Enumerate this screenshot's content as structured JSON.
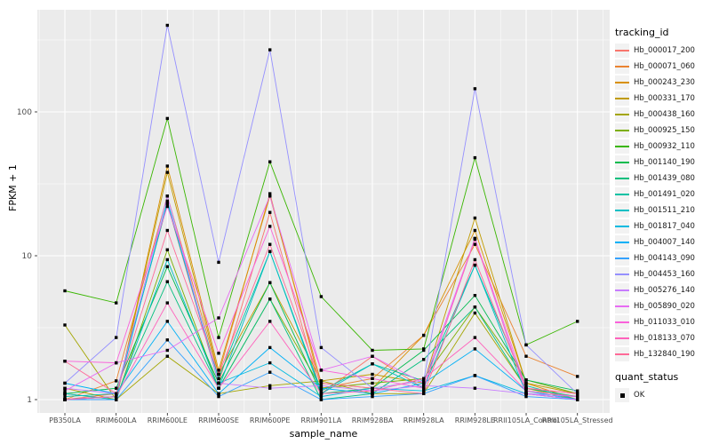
{
  "chart_data": {
    "type": "line",
    "xlabel": "sample_name",
    "ylabel": "FPKM + 1",
    "y_scale": "log10",
    "y_ticks": [
      1,
      10,
      100
    ],
    "y_minor_ticks": [
      3.162,
      31.62,
      316.2
    ],
    "ylim": [
      0.81,
      510
    ],
    "grid": true,
    "legend_position": "right",
    "legend_title": "tracking_id",
    "point_marker": "black-filled-square",
    "quant_status": {
      "title": "quant_status",
      "values": [
        "OK"
      ]
    },
    "panel_bg_color": "#EBEBEB",
    "grid_color": "#FFFFFF",
    "axis_text_color": "#4D4D4D",
    "categories": [
      "PB350LA",
      "RRIM600LA",
      "RRIM600LE",
      "RRIM600SE",
      "RRIM600PE",
      "RRIM901LA",
      "RRIM928BA",
      "RRIM928LA",
      "RRIM928LE",
      "RRII105LA_Control",
      "RRII105LA_Stressed"
    ],
    "series": [
      {
        "name": "Hb_000017_200",
        "color": "#F8766D",
        "values": [
          1.0,
          1.1,
          23,
          1.3,
          20,
          1.1,
          2.0,
          1.2,
          13.0,
          1.1,
          1.0
        ]
      },
      {
        "name": "Hb_000071_060",
        "color": "#EA8331",
        "values": [
          1.0,
          1.35,
          26,
          1.5,
          27,
          1.2,
          1.4,
          2.8,
          12.0,
          2.0,
          1.45
        ]
      },
      {
        "name": "Hb_000243_230",
        "color": "#D89000",
        "values": [
          1.1,
          1.0,
          42,
          1.6,
          26,
          1.3,
          1.2,
          2.8,
          15.0,
          1.3,
          1.0
        ]
      },
      {
        "name": "Hb_000331_170",
        "color": "#C09B00",
        "values": [
          1.2,
          1.0,
          38,
          1.5,
          6.5,
          1.35,
          1.5,
          1.3,
          18.3,
          1.3,
          1.1
        ]
      },
      {
        "name": "Hb_000438_160",
        "color": "#A3A500",
        "values": [
          3.3,
          1.0,
          2.0,
          1.1,
          1.25,
          1.35,
          1.1,
          1.1,
          4.0,
          1.2,
          1.0
        ]
      },
      {
        "name": "Hb_000925_150",
        "color": "#7CAE00",
        "values": [
          1.0,
          1.0,
          11,
          1.2,
          5.0,
          1.2,
          1.3,
          1.4,
          4.4,
          1.37,
          1.1
        ]
      },
      {
        "name": "Hb_000932_110",
        "color": "#39B600",
        "values": [
          5.7,
          4.7,
          90,
          2.7,
          45,
          5.2,
          2.2,
          2.25,
          48,
          2.4,
          3.5
        ]
      },
      {
        "name": "Hb_001140_190",
        "color": "#00BB4E",
        "values": [
          1.1,
          1.2,
          8.4,
          1.3,
          6.5,
          1.1,
          1.2,
          2.2,
          5.3,
          1.37,
          1.15
        ]
      },
      {
        "name": "Hb_001439_080",
        "color": "#00BF7D",
        "values": [
          1.0,
          1.05,
          6.6,
          1.2,
          5.0,
          1.0,
          1.1,
          1.9,
          4.4,
          1.2,
          1.05
        ]
      },
      {
        "name": "Hb_001491_020",
        "color": "#00C1A3",
        "values": [
          1.05,
          1.1,
          23,
          1.4,
          10.7,
          1.15,
          1.77,
          1.35,
          8.6,
          1.25,
          1.0
        ]
      },
      {
        "name": "Hb_001511_210",
        "color": "#00BFC4",
        "values": [
          1.1,
          1.0,
          9.4,
          1.2,
          10.7,
          1.1,
          1.77,
          1.2,
          8.6,
          1.1,
          1.05
        ]
      },
      {
        "name": "Hb_001817_040",
        "color": "#00BAE0",
        "values": [
          1.0,
          1.05,
          24,
          1.3,
          1.8,
          1.05,
          1.2,
          1.15,
          1.47,
          1.1,
          1.0
        ]
      },
      {
        "name": "Hb_004007_140",
        "color": "#00B0F6",
        "values": [
          1.3,
          1.1,
          3.5,
          1.1,
          2.3,
          1.2,
          1.1,
          1.3,
          2.25,
          1.15,
          1.0
        ]
      },
      {
        "name": "Hb_004143_090",
        "color": "#35A2FF",
        "values": [
          1.0,
          1.0,
          2.6,
          1.05,
          1.55,
          1.0,
          1.05,
          1.1,
          1.47,
          1.05,
          1.0
        ]
      },
      {
        "name": "Hb_004453_160",
        "color": "#9590FF",
        "values": [
          1.3,
          2.7,
          400,
          9.0,
          270,
          2.3,
          1.2,
          1.35,
          145,
          2.4,
          1.1
        ]
      },
      {
        "name": "Hb_005276_140",
        "color": "#C77CFF",
        "values": [
          1.2,
          1.1,
          26,
          1.3,
          1.2,
          1.25,
          1.15,
          1.25,
          1.2,
          1.1,
          1.05
        ]
      },
      {
        "name": "Hb_005890_020",
        "color": "#E76BF3",
        "values": [
          1.15,
          1.8,
          2.2,
          3.7,
          26,
          1.6,
          2.0,
          1.3,
          13.2,
          1.1,
          1.0
        ]
      },
      {
        "name": "Hb_011033_010",
        "color": "#FA62DB",
        "values": [
          1.85,
          1.8,
          22,
          2.1,
          16,
          1.6,
          1.4,
          1.2,
          13.2,
          1.2,
          1.1
        ]
      },
      {
        "name": "Hb_018133_070",
        "color": "#FF62BC",
        "values": [
          1.0,
          1.05,
          4.7,
          1.2,
          3.5,
          1.1,
          1.15,
          1.4,
          2.7,
          1.15,
          1.05
        ]
      },
      {
        "name": "Hb_132840_190",
        "color": "#FF6A98",
        "values": [
          1.85,
          1.1,
          15,
          1.5,
          12,
          1.3,
          1.2,
          1.1,
          9.4,
          1.2,
          1.1
        ]
      }
    ]
  }
}
